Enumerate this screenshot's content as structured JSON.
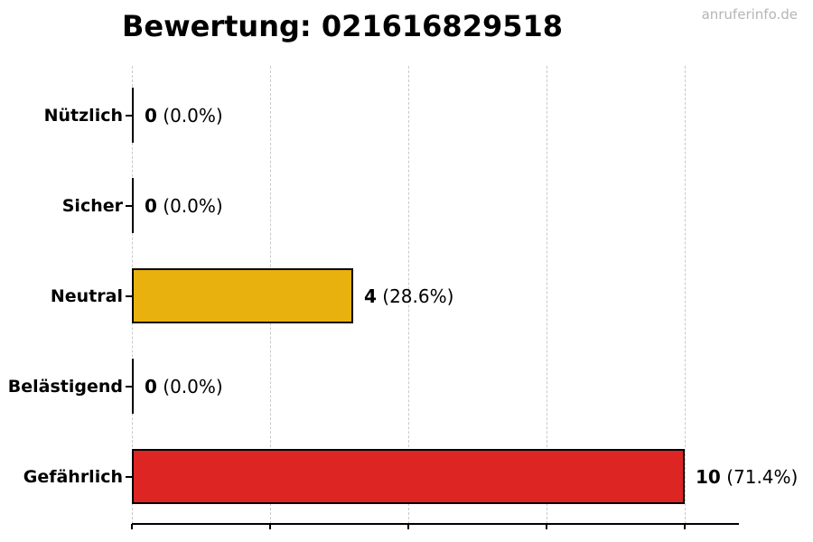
{
  "title": "Bewertung: 021616829518",
  "watermark": "anruferinfo.de",
  "chart_data": {
    "type": "bar",
    "orientation": "horizontal",
    "title": "Bewertung: 021616829518",
    "categories": [
      "Nützlich",
      "Sicher",
      "Neutral",
      "Belästigend",
      "Gefährlich"
    ],
    "values": [
      0,
      0,
      4,
      0,
      10
    ],
    "value_labels": [
      "0",
      "0",
      "4",
      "0",
      "10"
    ],
    "percent_labels": [
      "(0.0%)",
      "(0.0%)",
      "(28.6%)",
      "(0.0%)",
      "(71.4%)"
    ],
    "bar_colors": [
      "#000000",
      "#000000",
      "#e8b10e",
      "#000000",
      "#dd2524"
    ],
    "bar_edge_color": "#000000",
    "xlabel": "",
    "ylabel": "",
    "xlim": [
      0,
      11
    ],
    "xticks": [
      0,
      2.5,
      5,
      7.5,
      10
    ],
    "xtick_labels": [
      "",
      "",
      "",
      "",
      ""
    ],
    "grid": true,
    "gridline_style": "dashed",
    "gridline_color": "#c9c9c9",
    "background": "#ffffff",
    "legend": null
  }
}
